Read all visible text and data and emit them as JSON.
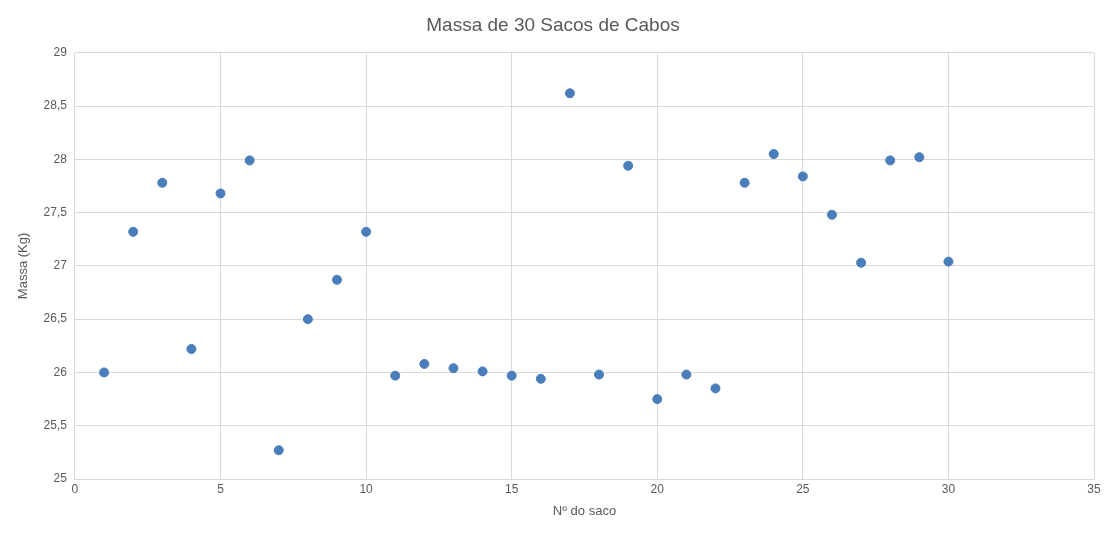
{
  "chart_data": {
    "type": "scatter",
    "title": "Massa de 30 Sacos de Cabos",
    "xlabel": "Nº do saco",
    "ylabel": "Massa (Kg)",
    "x": [
      1,
      2,
      3,
      4,
      5,
      6,
      7,
      8,
      9,
      10,
      11,
      12,
      13,
      14,
      15,
      16,
      17,
      18,
      19,
      20,
      21,
      22,
      23,
      24,
      25,
      26,
      27,
      28,
      29,
      30
    ],
    "series": [
      {
        "color": "#4a7ebb",
        "values": [
          26.0,
          27.32,
          27.78,
          26.22,
          27.68,
          27.99,
          25.27,
          26.5,
          26.87,
          27.32,
          25.97,
          26.08,
          26.04,
          26.01,
          25.97,
          25.94,
          28.62,
          25.98,
          27.94,
          25.75,
          25.98,
          25.85,
          27.78,
          28.05,
          27.84,
          27.48,
          27.03,
          27.99,
          28.02,
          27.04
        ]
      }
    ],
    "xlim": [
      0,
      35
    ],
    "xticks": [
      0,
      5,
      10,
      15,
      20,
      25,
      30,
      35
    ],
    "ylim": [
      25,
      29
    ],
    "yticks": [
      25,
      {
        "value": 25.5,
        "label": "25,5"
      },
      26,
      {
        "value": 26.5,
        "label": "26,5"
      },
      27,
      {
        "value": 27.5,
        "label": "27,5"
      },
      28,
      {
        "value": 28.5,
        "label": "28,5"
      },
      29
    ],
    "grid": true,
    "marker": "circle",
    "legend": false
  }
}
